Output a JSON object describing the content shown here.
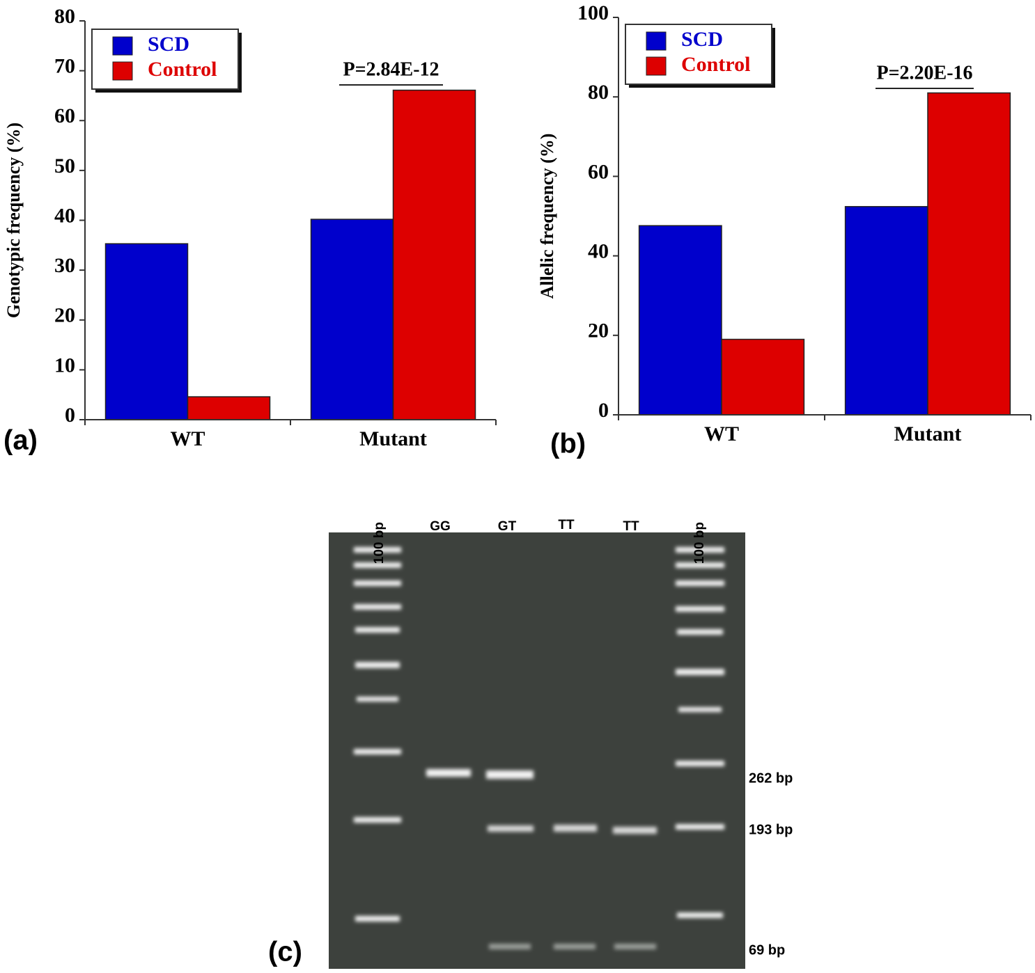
{
  "chart_data": [
    {
      "type": "bar",
      "panel_label": "(a)",
      "y_label": "Genotypic frequency (%)",
      "categories": [
        "WT",
        "Mutant"
      ],
      "series": [
        {
          "name": "SCD",
          "color": "#0000cc",
          "values": [
            35.3,
            40.2
          ]
        },
        {
          "name": "Control",
          "color": "#dd0000",
          "values": [
            4.6,
            66.1
          ]
        }
      ],
      "ylim": [
        0,
        80
      ],
      "yticks": [
        0,
        10,
        20,
        30,
        40,
        50,
        60,
        70,
        80
      ],
      "annotation": "P=2.84E-12",
      "legend": "upper left"
    },
    {
      "type": "bar",
      "panel_label": "(b)",
      "y_label": "Allelic frequency (%)",
      "categories": [
        "WT",
        "Mutant"
      ],
      "series": [
        {
          "name": "SCD",
          "color": "#0000cc",
          "values": [
            47.6,
            52.4
          ]
        },
        {
          "name": "Control",
          "color": "#dd0000",
          "values": [
            19.0,
            81.0
          ]
        }
      ],
      "ylim": [
        0,
        100
      ],
      "yticks": [
        0,
        20,
        40,
        60,
        80,
        100
      ],
      "annotation": "P=2.20E-16",
      "legend": "upper left"
    }
  ],
  "gel": {
    "panel_label": "(c)",
    "lane_labels": [
      "100 bp",
      "GG",
      "GT",
      "TT",
      "TT",
      "100 bp"
    ],
    "size_labels": [
      "262 bp",
      "193 bp",
      "69 bp"
    ]
  }
}
